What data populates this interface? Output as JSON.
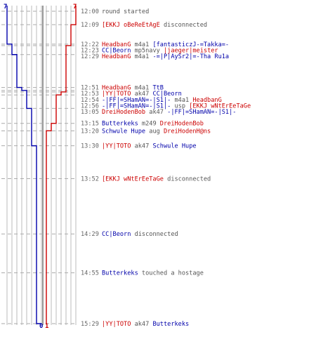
{
  "chart_data": {
    "type": "line",
    "colors": {
      "red_team": "#cc0000",
      "blue_team": "#0000aa",
      "time": "#666666",
      "plain": "#555555",
      "grid": "#bbbbbb",
      "center": "#777777"
    },
    "score_labels": {
      "blue_top": "7",
      "red_top": "7",
      "blue_bottom": "0",
      "red_bottom": "1"
    },
    "ylim_minutes": [
      0,
      209
    ],
    "events": [
      {
        "time": "12:00",
        "minute": 0,
        "parts": [
          {
            "t": "round started",
            "c": "plain"
          }
        ]
      },
      {
        "time": "12:09",
        "minute": 9,
        "parts": [
          {
            "t": "[EKKJ oBeReEtAgE",
            "c": "red"
          },
          {
            "t": " disconnected",
            "c": "plain"
          }
        ]
      },
      {
        "time": "12:22",
        "minute": 22,
        "parts": [
          {
            "t": "HeadbanG",
            "c": "red"
          },
          {
            "t": " m4a1 ",
            "c": "plain"
          },
          {
            "t": "[fantasticzJ-=Takka=-",
            "c": "blue"
          }
        ]
      },
      {
        "time": "12:23",
        "minute": 23,
        "parts": [
          {
            "t": "CC|Beorn",
            "c": "blue"
          },
          {
            "t": " mp5navy ",
            "c": "plain"
          },
          {
            "t": "|jaeger|meister",
            "c": "red"
          }
        ]
      },
      {
        "time": "12:29",
        "minute": 29,
        "parts": [
          {
            "t": "HeadbanG",
            "c": "red"
          },
          {
            "t": " m4a1 ",
            "c": "plain"
          },
          {
            "t": "-=|P|AySr2|=-Tha Ru1a",
            "c": "blue"
          }
        ]
      },
      {
        "time": "12:51",
        "minute": 51,
        "parts": [
          {
            "t": "HeadbanG",
            "c": "red"
          },
          {
            "t": " m4a1 ",
            "c": "plain"
          },
          {
            "t": "TtB",
            "c": "blue"
          }
        ]
      },
      {
        "time": "12:53",
        "minute": 53,
        "parts": [
          {
            "t": "|YY|TOTO",
            "c": "red"
          },
          {
            "t": " ak47 ",
            "c": "plain"
          },
          {
            "t": "CC|Beorn",
            "c": "blue"
          }
        ]
      },
      {
        "time": "12:54",
        "minute": 54,
        "parts": [
          {
            "t": "-|FF|=SHamAN=-|S1|-",
            "c": "blue"
          },
          {
            "t": " m4a1 ",
            "c": "plain"
          },
          {
            "t": "HeadbanG",
            "c": "red"
          }
        ]
      },
      {
        "time": "12:56",
        "minute": 56,
        "parts": [
          {
            "t": "-|FF|=SHamAN=-|S1|-",
            "c": "blue"
          },
          {
            "t": " usp ",
            "c": "plain"
          },
          {
            "t": "[EKKJ wNtErEeTaGe",
            "c": "red"
          }
        ]
      },
      {
        "time": "13:05",
        "minute": 65,
        "parts": [
          {
            "t": "DreiHodenBob",
            "c": "red"
          },
          {
            "t": " ak47 ",
            "c": "plain"
          },
          {
            "t": "-|FF|=SHamAN=-|S1|-",
            "c": "blue"
          }
        ]
      },
      {
        "time": "13:15",
        "minute": 75,
        "parts": [
          {
            "t": "Butterkeks",
            "c": "blue"
          },
          {
            "t": " m249 ",
            "c": "plain"
          },
          {
            "t": "DreiHodenBob",
            "c": "red"
          }
        ]
      },
      {
        "time": "13:20",
        "minute": 80,
        "parts": [
          {
            "t": "Schwule Hupe",
            "c": "blue"
          },
          {
            "t": " aug ",
            "c": "plain"
          },
          {
            "t": "DreiHodenH@ns",
            "c": "red"
          }
        ]
      },
      {
        "time": "13:30",
        "minute": 90,
        "parts": [
          {
            "t": "|YY|TOTO",
            "c": "red"
          },
          {
            "t": " ak47 ",
            "c": "plain"
          },
          {
            "t": "Schwule Hupe",
            "c": "blue"
          }
        ]
      },
      {
        "time": "13:52",
        "minute": 112,
        "parts": [
          {
            "t": "[EKKJ wNtErEeTaGe",
            "c": "red"
          },
          {
            "t": " disconnected",
            "c": "plain"
          }
        ]
      },
      {
        "time": "14:29",
        "minute": 149,
        "parts": [
          {
            "t": "CC|Beorn",
            "c": "blue"
          },
          {
            "t": " disconnected",
            "c": "plain"
          }
        ]
      },
      {
        "time": "14:55",
        "minute": 175,
        "parts": [
          {
            "t": "Butterkeks",
            "c": "blue"
          },
          {
            "t": " touched a hostage",
            "c": "plain"
          }
        ]
      },
      {
        "time": "15:29",
        "minute": 209,
        "parts": [
          {
            "t": "|YY|TOTO",
            "c": "red"
          },
          {
            "t": " ak47 ",
            "c": "plain"
          },
          {
            "t": "Butterkeks",
            "c": "blue"
          }
        ]
      }
    ],
    "blue_team_steps": [
      {
        "minute": 0,
        "alive": 7
      },
      {
        "minute": 22,
        "alive": 6
      },
      {
        "minute": 29,
        "alive": 5
      },
      {
        "minute": 51,
        "alive": 4
      },
      {
        "minute": 53,
        "alive": 3
      },
      {
        "minute": 65,
        "alive": 2
      },
      {
        "minute": 90,
        "alive": 1
      },
      {
        "minute": 149,
        "alive": 1
      },
      {
        "minute": 209,
        "alive": 0
      }
    ],
    "red_team_steps": [
      {
        "minute": 0,
        "alive": 7
      },
      {
        "minute": 9,
        "alive": 6
      },
      {
        "minute": 23,
        "alive": 5
      },
      {
        "minute": 54,
        "alive": 4
      },
      {
        "minute": 56,
        "alive": 3
      },
      {
        "minute": 75,
        "alive": 2
      },
      {
        "minute": 80,
        "alive": 1
      },
      {
        "minute": 112,
        "alive": 1
      }
    ]
  }
}
